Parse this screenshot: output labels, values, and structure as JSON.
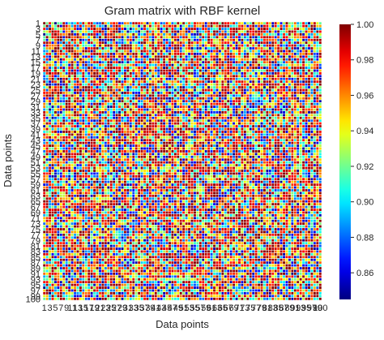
{
  "chart_data": {
    "type": "heatmap",
    "title": "Gram matrix with RBF kernel",
    "xlabel": "Data points",
    "ylabel": "Data points",
    "n": 100,
    "x_tick_labels": [
      "1",
      "3",
      "5",
      "7",
      "9",
      "11",
      "13",
      "15",
      "17",
      "19",
      "21",
      "23",
      "25",
      "27",
      "29",
      "31",
      "33",
      "35",
      "37",
      "39",
      "41",
      "43",
      "45",
      "47",
      "49",
      "51",
      "53",
      "55",
      "57",
      "59",
      "61",
      "63",
      "65",
      "67",
      "69",
      "71",
      "73",
      "75",
      "77",
      "79",
      "81",
      "83",
      "85",
      "87",
      "89",
      "91",
      "93",
      "95",
      "97",
      "99",
      "100"
    ],
    "y_tick_labels": [
      "1",
      "3",
      "5",
      "7",
      "9",
      "11",
      "13",
      "15",
      "17",
      "19",
      "21",
      "23",
      "25",
      "27",
      "29",
      "31",
      "33",
      "35",
      "37",
      "39",
      "41",
      "43",
      "45",
      "47",
      "49",
      "51",
      "53",
      "55",
      "57",
      "59",
      "61",
      "63",
      "65",
      "67",
      "69",
      "71",
      "73",
      "75",
      "77",
      "79",
      "81",
      "83",
      "85",
      "87",
      "89",
      "91",
      "93",
      "95",
      "97",
      "99",
      "100"
    ],
    "diagonal_value": 1.0,
    "colorbar": {
      "colormap": "jet",
      "vmin": 0.845,
      "vmax": 1.0,
      "ticks": [
        "0.86",
        "0.88",
        "0.90",
        "0.92",
        "0.94",
        "0.96",
        "0.98",
        "1.00"
      ],
      "tick_values": [
        0.86,
        0.88,
        0.9,
        0.92,
        0.94,
        0.96,
        0.98,
        1.0
      ]
    },
    "cell_border_color": "#ffffff",
    "value_distribution_note_range": [
      0.845,
      1.0
    ]
  }
}
